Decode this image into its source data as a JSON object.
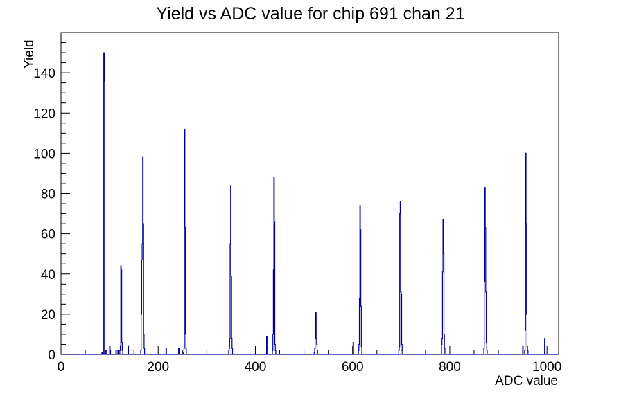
{
  "chart_data": {
    "type": "bar",
    "style": "root-step-histogram",
    "title": "Yield vs ADC value for chip 691 chan 21",
    "xlabel": "ADC value",
    "ylabel": "Yield",
    "xlim": [
      0,
      1024
    ],
    "ylim": [
      0,
      160
    ],
    "x_major_ticks": [
      0,
      200,
      400,
      600,
      800,
      1000
    ],
    "y_major_ticks": [
      0,
      20,
      40,
      60,
      80,
      100,
      120,
      140
    ],
    "x_minor_step": 50,
    "x_major_step": 200,
    "y_minor_step": 5,
    "y_major_step": 20,
    "grid": false,
    "legend": false,
    "line_color": "#000099",
    "axis_color": "#000000",
    "background_color": "#ffffff",
    "bins": [
      [
        84,
        1
      ],
      [
        88,
        150
      ],
      [
        89,
        136
      ],
      [
        92,
        2
      ],
      [
        100,
        4
      ],
      [
        101,
        2
      ],
      [
        113,
        2
      ],
      [
        117,
        2
      ],
      [
        121,
        2
      ],
      [
        122,
        4
      ],
      [
        123,
        44
      ],
      [
        124,
        42
      ],
      [
        125,
        6
      ],
      [
        126,
        2
      ],
      [
        138,
        4
      ],
      [
        164,
        2
      ],
      [
        165,
        20
      ],
      [
        166,
        47
      ],
      [
        167,
        55
      ],
      [
        168,
        98
      ],
      [
        169,
        65
      ],
      [
        170,
        10
      ],
      [
        171,
        3
      ],
      [
        216,
        3
      ],
      [
        242,
        3
      ],
      [
        252,
        1
      ],
      [
        253,
        3
      ],
      [
        254,
        112
      ],
      [
        255,
        63
      ],
      [
        256,
        10
      ],
      [
        257,
        3
      ],
      [
        345,
        2
      ],
      [
        346,
        3
      ],
      [
        347,
        8
      ],
      [
        348,
        55
      ],
      [
        349,
        84
      ],
      [
        350,
        39
      ],
      [
        351,
        8
      ],
      [
        352,
        3
      ],
      [
        423,
        9
      ],
      [
        424,
        3
      ],
      [
        435,
        2
      ],
      [
        436,
        10
      ],
      [
        437,
        42
      ],
      [
        438,
        88
      ],
      [
        439,
        66
      ],
      [
        440,
        5
      ],
      [
        441,
        2
      ],
      [
        521,
        1
      ],
      [
        522,
        3
      ],
      [
        523,
        8
      ],
      [
        524,
        21
      ],
      [
        525,
        19
      ],
      [
        526,
        5
      ],
      [
        527,
        2
      ],
      [
        601,
        6
      ],
      [
        612,
        2
      ],
      [
        613,
        5
      ],
      [
        614,
        28
      ],
      [
        615,
        74
      ],
      [
        616,
        62
      ],
      [
        617,
        24
      ],
      [
        618,
        4
      ],
      [
        695,
        2
      ],
      [
        696,
        4
      ],
      [
        697,
        70
      ],
      [
        698,
        76
      ],
      [
        699,
        31
      ],
      [
        700,
        30
      ],
      [
        701,
        5
      ],
      [
        702,
        2
      ],
      [
        783,
        5
      ],
      [
        784,
        8
      ],
      [
        785,
        41
      ],
      [
        786,
        67
      ],
      [
        787,
        50
      ],
      [
        788,
        10
      ],
      [
        789,
        3
      ],
      [
        870,
        3
      ],
      [
        871,
        36
      ],
      [
        872,
        83
      ],
      [
        873,
        63
      ],
      [
        874,
        31
      ],
      [
        875,
        6
      ],
      [
        876,
        2
      ],
      [
        950,
        4
      ],
      [
        954,
        2
      ],
      [
        955,
        12
      ],
      [
        956,
        100
      ],
      [
        957,
        65
      ],
      [
        958,
        20
      ],
      [
        959,
        4
      ],
      [
        960,
        2
      ],
      [
        995,
        8
      ]
    ]
  }
}
